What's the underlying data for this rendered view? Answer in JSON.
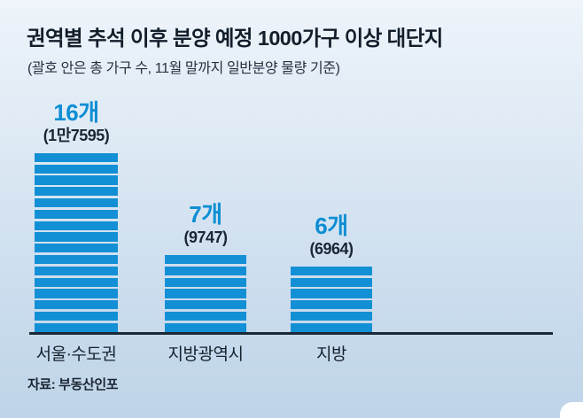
{
  "header": {
    "title": "권역별 추석 이후 분양 예정 1000가구 이상 대단지",
    "subtitle": "(괄호 안은 총 가구 수, 11월 말까지 일반분양 물량 기준)"
  },
  "source": "자료: 부동산인포",
  "colors": {
    "bar": "#1390d5",
    "count_text": "#0d8ed4",
    "dark_text": "#16222f",
    "baseline": "#1c2836",
    "background_top": "#eef4fa",
    "background_bottom": "#bfd4e9"
  },
  "chart_data": {
    "type": "bar",
    "title": "권역별 추석 이후 분양 예정 1000가구 이상 대단지",
    "subtitle": "(괄호 안은 총 가구 수, 11월 말까지 일반분양 물량 기준)",
    "categories": [
      "서울·수도권",
      "지방광역시",
      "지방"
    ],
    "values": [
      16,
      7,
      6
    ],
    "count_labels": [
      "16개",
      "7개",
      "6개"
    ],
    "total_households": [
      17595,
      9747,
      6964
    ],
    "total_labels": [
      "(1만7595)",
      "(9747)",
      "(6964)"
    ],
    "xlabel": "",
    "ylabel": "",
    "legend": "none",
    "grid": false,
    "style_note": "each bar is built from stacked horizontal segments, one segment per complex (개)"
  }
}
